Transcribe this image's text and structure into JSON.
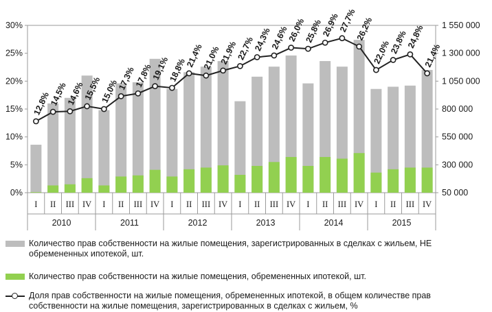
{
  "chart_data": {
    "type": "bar",
    "quarters": [
      "I",
      "II",
      "III",
      "IV",
      "I",
      "II",
      "III",
      "IV",
      "I",
      "II",
      "III",
      "IV",
      "I",
      "II",
      "III",
      "IV",
      "I",
      "II",
      "III",
      "IV",
      "I",
      "II",
      "III",
      "IV"
    ],
    "years": [
      "2010",
      "2011",
      "2012",
      "2013",
      "2014",
      "2015"
    ],
    "left_axis": {
      "ticks": [
        "0%",
        "5%",
        "10%",
        "15%",
        "20%",
        "25%",
        "30%"
      ],
      "min": 0,
      "max": 30
    },
    "right_axis": {
      "ticks": [
        "50 000",
        "300 000",
        "550 000",
        "800 000",
        "1 050 000",
        "1 300 000",
        "1 550 000"
      ],
      "min": 50000,
      "max": 1550000
    },
    "series": [
      {
        "name": "Количество прав собственности на жилые помещения, зарегистрированных в сделках с жильем, НЕ обремененных ипотекой, шт.",
        "color": "#bdbdbd",
        "axis": "right",
        "values": [
          480000,
          850000,
          900000,
          1100000,
          790000,
          1030000,
          1040000,
          1250000,
          980000,
          1130000,
          1180000,
          1230000,
          870000,
          1090000,
          1180000,
          1280000,
          1030000,
          1230000,
          1180000,
          1420000,
          980000,
          1000000,
          1010000,
          1150000
        ]
      },
      {
        "name": "Количество прав собственности на жилые помещения, обремененных ипотекой, шт.",
        "color": "#92d050",
        "axis": "right",
        "values": [
          55000,
          115000,
          125000,
          180000,
          115000,
          195000,
          205000,
          255000,
          195000,
          260000,
          275000,
          295000,
          210000,
          290000,
          325000,
          370000,
          290000,
          370000,
          355000,
          405000,
          230000,
          260000,
          275000,
          275000
        ]
      },
      {
        "name": "Доля прав собственности на жилые помещения, обремененных ипотекой, в общем количестве прав собственности на жилые помещения, зарегистрированных в сделках с жильем, %",
        "color": "#222222",
        "axis": "left",
        "values": [
          12.8,
          14.5,
          14.6,
          15.5,
          15.0,
          17.3,
          17.8,
          19.1,
          18.8,
          21.4,
          21.0,
          21.9,
          22.7,
          24.3,
          24.6,
          26.0,
          25.8,
          26.9,
          27.7,
          26.2,
          22.0,
          23.8,
          24.8,
          21.4
        ],
        "labels": [
          "12,8%",
          "14,5%",
          "14,6%",
          "15,5%",
          "15,0%",
          "17,3%",
          "17,8%",
          "19,1%",
          "18,8%",
          "21,4%",
          "21,0%",
          "21,9%",
          "22,7%",
          "24,3%",
          "24,6%",
          "26,0%",
          "25,8%",
          "26,9%",
          "27,7%",
          "26,2%",
          "22,0%",
          "23,8%",
          "24,8%",
          "21,4%"
        ]
      }
    ]
  },
  "legend": {
    "gray_bars": "Количество прав собственности на жилые помещения, зарегистрированных в сделках с жильем, НЕ обремененных ипотекой, шт.",
    "green_bars": "Количество прав собственности на жилые помещения, обремененных ипотекой, шт.",
    "share_line": "Доля прав собственности на жилые помещения, обремененных ипотекой, в общем количестве прав собственности на жилые помещения, зарегистрированных в сделках с жильем, %"
  }
}
